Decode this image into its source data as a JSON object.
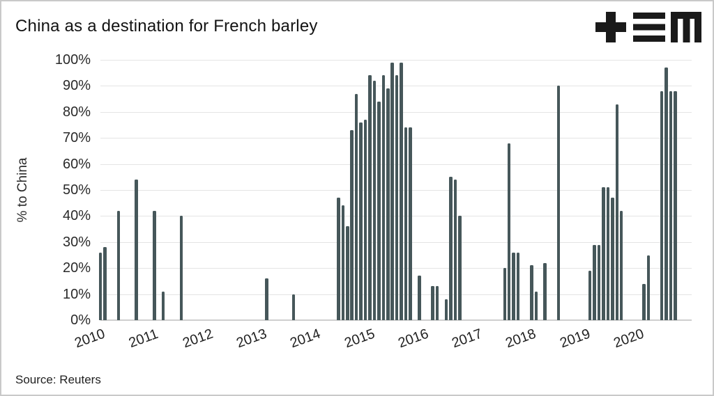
{
  "header": {
    "title": "China as a destination for French barley"
  },
  "footer": {
    "source": "Source: Reuters"
  },
  "chart_data": {
    "type": "bar",
    "title": "China as a destination for French barley",
    "xlabel": "",
    "ylabel": "% to China",
    "ylim": [
      0,
      100
    ],
    "grid": "horizontal",
    "legend": "none",
    "bar_color": "#46575a",
    "y_ticks": [
      "0%",
      "10%",
      "20%",
      "30%",
      "40%",
      "50%",
      "60%",
      "70%",
      "80%",
      "90%",
      "100%"
    ],
    "x_ticks": [
      "2010",
      "2011",
      "2012",
      "2013",
      "2014",
      "2015",
      "2016",
      "2017",
      "2018",
      "2019",
      "2020"
    ],
    "points": [
      {
        "month": "2010-01",
        "value": 26
      },
      {
        "month": "2010-02",
        "value": 28
      },
      {
        "month": "2010-05",
        "value": 42
      },
      {
        "month": "2010-09",
        "value": 54
      },
      {
        "month": "2011-01",
        "value": 42
      },
      {
        "month": "2011-03",
        "value": 11
      },
      {
        "month": "2011-07",
        "value": 40
      },
      {
        "month": "2013-02",
        "value": 16
      },
      {
        "month": "2013-08",
        "value": 10
      },
      {
        "month": "2014-06",
        "value": 47
      },
      {
        "month": "2014-07",
        "value": 44
      },
      {
        "month": "2014-08",
        "value": 36
      },
      {
        "month": "2014-09",
        "value": 73
      },
      {
        "month": "2014-10",
        "value": 87
      },
      {
        "month": "2014-11",
        "value": 76
      },
      {
        "month": "2014-12",
        "value": 77
      },
      {
        "month": "2015-01",
        "value": 94
      },
      {
        "month": "2015-02",
        "value": 92
      },
      {
        "month": "2015-03",
        "value": 84
      },
      {
        "month": "2015-04",
        "value": 94
      },
      {
        "month": "2015-05",
        "value": 89
      },
      {
        "month": "2015-06",
        "value": 99
      },
      {
        "month": "2015-07",
        "value": 94
      },
      {
        "month": "2015-08",
        "value": 99
      },
      {
        "month": "2015-09",
        "value": 74
      },
      {
        "month": "2015-10",
        "value": 74
      },
      {
        "month": "2015-12",
        "value": 17
      },
      {
        "month": "2016-03",
        "value": 13
      },
      {
        "month": "2016-04",
        "value": 13
      },
      {
        "month": "2016-06",
        "value": 8
      },
      {
        "month": "2016-07",
        "value": 55
      },
      {
        "month": "2016-08",
        "value": 54
      },
      {
        "month": "2016-09",
        "value": 40
      },
      {
        "month": "2017-07",
        "value": 20
      },
      {
        "month": "2017-08",
        "value": 68
      },
      {
        "month": "2017-09",
        "value": 26
      },
      {
        "month": "2017-10",
        "value": 26
      },
      {
        "month": "2018-01",
        "value": 21
      },
      {
        "month": "2018-02",
        "value": 11
      },
      {
        "month": "2018-04",
        "value": 22
      },
      {
        "month": "2018-07",
        "value": 90
      },
      {
        "month": "2019-02",
        "value": 19
      },
      {
        "month": "2019-03",
        "value": 29
      },
      {
        "month": "2019-04",
        "value": 29
      },
      {
        "month": "2019-05",
        "value": 51
      },
      {
        "month": "2019-06",
        "value": 51
      },
      {
        "month": "2019-07",
        "value": 47
      },
      {
        "month": "2019-08",
        "value": 83
      },
      {
        "month": "2019-09",
        "value": 42
      },
      {
        "month": "2020-02",
        "value": 14
      },
      {
        "month": "2020-03",
        "value": 25
      },
      {
        "month": "2020-06",
        "value": 88
      },
      {
        "month": "2020-07",
        "value": 97
      },
      {
        "month": "2020-08",
        "value": 88
      },
      {
        "month": "2020-09",
        "value": 88
      }
    ]
  }
}
